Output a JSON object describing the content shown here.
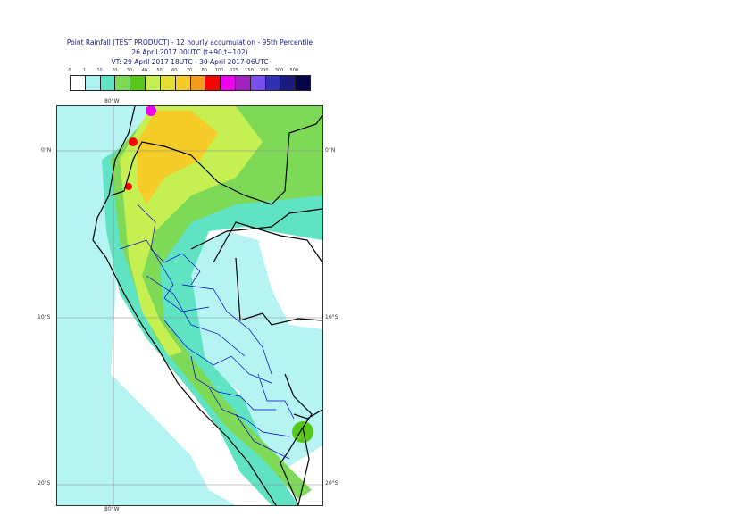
{
  "header": {
    "line1": "Point Rainfall (TEST PRODUCT) - 12 hourly accumulation - 95th Percentile",
    "line2": "26 April 2017 00UTC (t+90,t+102)",
    "line3": "VT: 29 April 2017 18UTC - 30 April 2017 06UTC"
  },
  "scale": {
    "labels": [
      "0",
      "1",
      "10",
      "20",
      "30",
      "40",
      "50",
      "60",
      "70",
      "80",
      "100",
      "125",
      "150",
      "200",
      "300",
      "500"
    ],
    "colors": [
      "#ffffff",
      "#aef3f3",
      "#5fe3c2",
      "#7ed957",
      "#57c81a",
      "#c6ef52",
      "#e4e033",
      "#f5cc28",
      "#f19c1d",
      "#ff0000",
      "#ee00ee",
      "#a020c0",
      "#7b4cf0",
      "#3030b0",
      "#1a1a80",
      "#050545"
    ]
  },
  "axes": {
    "top_lon": "80°W",
    "bottom_lon": "80°W",
    "lat_labels": [
      "0°N",
      "10°S",
      "20°S"
    ]
  },
  "map_colors": {
    "ocean_low": "#b6f4f4",
    "dry_land": "#ffffff",
    "teal": "#5fe3c2",
    "green": "#7ed957",
    "dark_green": "#57c81a",
    "lime": "#c6ef52",
    "yellow": "#e4e033",
    "orange": "#f5cc28",
    "red": "#ff0000",
    "magenta": "#ee00ee",
    "border_country": "#000000",
    "border_region": "#0000cc",
    "grid": "#888888"
  }
}
